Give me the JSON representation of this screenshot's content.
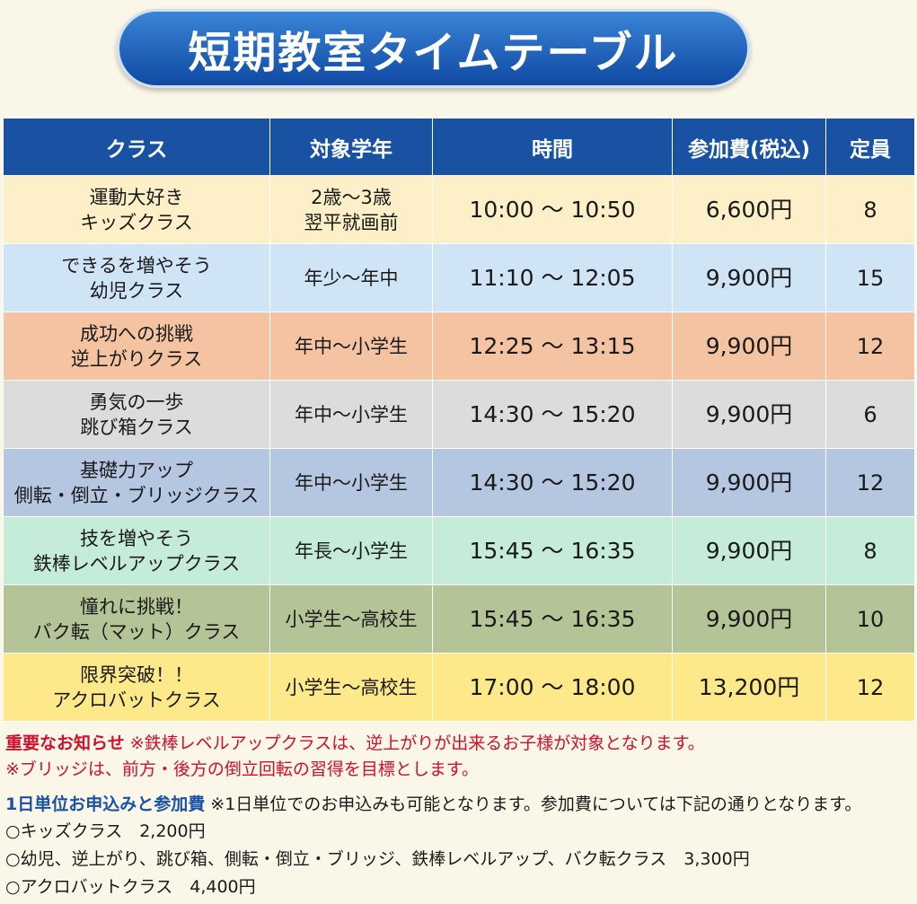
{
  "title": "短期教室タイムテーブル",
  "table": {
    "headers": [
      "クラス",
      "対象学年",
      "時間",
      "参加費(税込)",
      "定員"
    ],
    "rows": [
      [
        [
          "運動大好き",
          "キッズクラス"
        ],
        [
          "2歳～3歳",
          "翌平就画前"
        ],
        [
          "10:00 ～ 10:50"
        ],
        [
          "6,600円"
        ],
        [
          "8"
        ]
      ],
      [
        [
          "できるを増やそう",
          "幼児クラス"
        ],
        [
          "年少～年中"
        ],
        [
          "11:10 ～ 12:05"
        ],
        [
          "9,900円"
        ],
        [
          "15"
        ]
      ],
      [
        [
          "成功への挑戦",
          "逆上がりクラス"
        ],
        [
          "年中～小学生"
        ],
        [
          "12:25 ～ 13:15"
        ],
        [
          "9,900円"
        ],
        [
          "12"
        ]
      ],
      [
        [
          "勇気の一歩",
          "跳び箱クラス"
        ],
        [
          "年中～小学生"
        ],
        [
          "14:30 ～ 15:20"
        ],
        [
          "9,900円"
        ],
        [
          "6"
        ]
      ],
      [
        [
          "基礎力アップ",
          "側転・倒立・ブリッジクラス"
        ],
        [
          "年中～小学生"
        ],
        [
          "14:30 ～ 15:20"
        ],
        [
          "9,900円"
        ],
        [
          "12"
        ]
      ],
      [
        [
          "技を増やそう",
          "鉄棒レベルアップクラス"
        ],
        [
          "年長～小学生"
        ],
        [
          "15:45 ～ 16:35"
        ],
        [
          "9,900円"
        ],
        [
          "8"
        ]
      ],
      [
        [
          "憧れに挑戦！",
          "バク転（マット）クラス"
        ],
        [
          "小学生～高校生"
        ],
        [
          "15:45 ～ 16:35"
        ],
        [
          "9,900円"
        ],
        [
          "10"
        ]
      ],
      [
        [
          "限界突破！！",
          "アクロバットクラス"
        ],
        [
          "小学生～高校生"
        ],
        [
          "17:00 ～ 18:00"
        ],
        [
          "13,200円"
        ],
        [
          "12"
        ]
      ]
    ]
  },
  "notice": {
    "label": "重要なお知らせ",
    "lines": [
      "※鉄棒レベルアップクラスは、逆上がりが出来るお子様が対象となります。",
      "※ブリッジは、前方・後方の倒立回転の習得を目標とします。"
    ]
  },
  "daily": {
    "label": "1日単位お申込みと参加費",
    "note": "※1日単位でのお申込みも可能となります。参加費については下記の通りとなります。",
    "items": [
      "○キッズクラス　2,200円",
      "○幼児、逆上がり、跳び箱、側転・倒立・ブリッジ、鉄棒レベルアップ、バク転クラス　3,300円",
      "○アクロバットクラス　4,400円"
    ]
  }
}
